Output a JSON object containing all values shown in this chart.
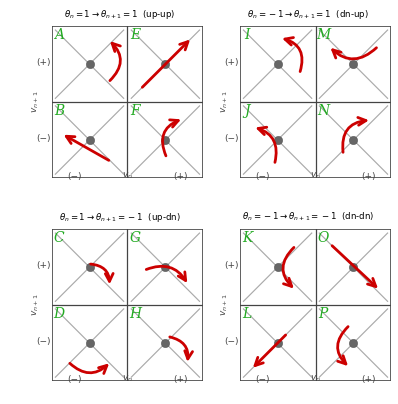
{
  "background": "#ffffff",
  "box_color": "#444444",
  "diag_color": "#aaaaaa",
  "arrow_color": "#cc0000",
  "label_color": "#22aa22",
  "dot_color": "#666666",
  "title_color": "#000000",
  "axis_label_color": "#444444",
  "panel_titles": [
    "$\\theta_n=1 \\rightarrow \\theta_{n+1}=1$  (up-up)",
    "$\\theta_n=-1 \\rightarrow \\theta_{n+1}=1$  (dn-up)",
    "$\\theta_n=1 \\rightarrow \\theta_{n+1}=-1$  (up-dn)",
    "$\\theta_n=-1 \\rightarrow \\theta_{n+1}=-1$  (dn-dn)"
  ],
  "cell_labels": [
    [
      "A",
      "E",
      "B",
      "F"
    ],
    [
      "I",
      "M",
      "J",
      "N"
    ],
    [
      "C",
      "G",
      "D",
      "H"
    ],
    [
      "K",
      "O",
      "L",
      "P"
    ]
  ]
}
